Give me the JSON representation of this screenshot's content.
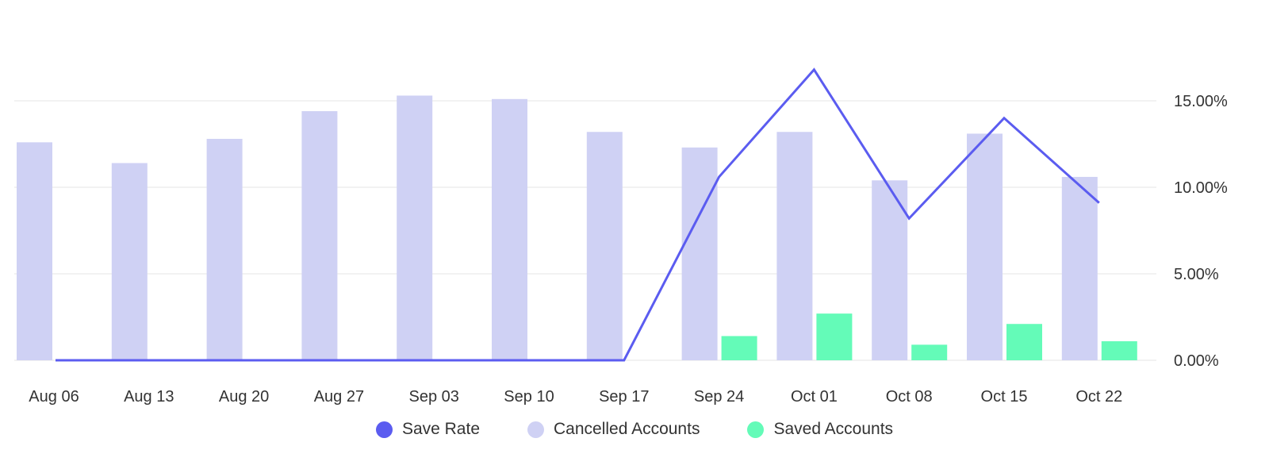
{
  "chart_data": {
    "type": "bar",
    "categories": [
      "Aug 06",
      "Aug 13",
      "Aug 20",
      "Aug 27",
      "Sep 03",
      "Sep 10",
      "Sep 17",
      "Sep 24",
      "Oct 01",
      "Oct 08",
      "Oct 15",
      "Oct 22"
    ],
    "series": [
      {
        "name": "Cancelled Accounts",
        "type": "bar",
        "color": "#cfd1f4",
        "values": [
          12.6,
          11.4,
          12.8,
          14.4,
          15.3,
          15.1,
          13.2,
          12.3,
          13.2,
          10.4,
          13.1,
          10.6
        ]
      },
      {
        "name": "Saved Accounts",
        "type": "bar",
        "color": "#64fbb8",
        "values": [
          0,
          0,
          0,
          0,
          0,
          0,
          0,
          1.4,
          2.7,
          0.9,
          2.1,
          1.1
        ]
      },
      {
        "name": "Save Rate",
        "type": "line",
        "color": "#5b5cf0",
        "values": [
          0,
          0,
          0,
          0,
          0,
          0,
          0,
          10.6,
          16.8,
          8.2,
          14.0,
          9.1
        ]
      }
    ],
    "y_axis": {
      "position": "right",
      "range": [
        0,
        15
      ],
      "ticks": [
        "0.00%",
        "5.00%",
        "10.00%",
        "15.00%"
      ],
      "tick_values": [
        0,
        5,
        10,
        15
      ]
    },
    "grid": true,
    "legend_position": "bottom-center",
    "title": "",
    "xlabel": "",
    "ylabel": ""
  },
  "legend": {
    "items": [
      {
        "label": "Save Rate",
        "color": "#5b5cf0"
      },
      {
        "label": "Cancelled Accounts",
        "color": "#cfd1f4"
      },
      {
        "label": "Saved Accounts",
        "color": "#64fbb8"
      }
    ]
  }
}
